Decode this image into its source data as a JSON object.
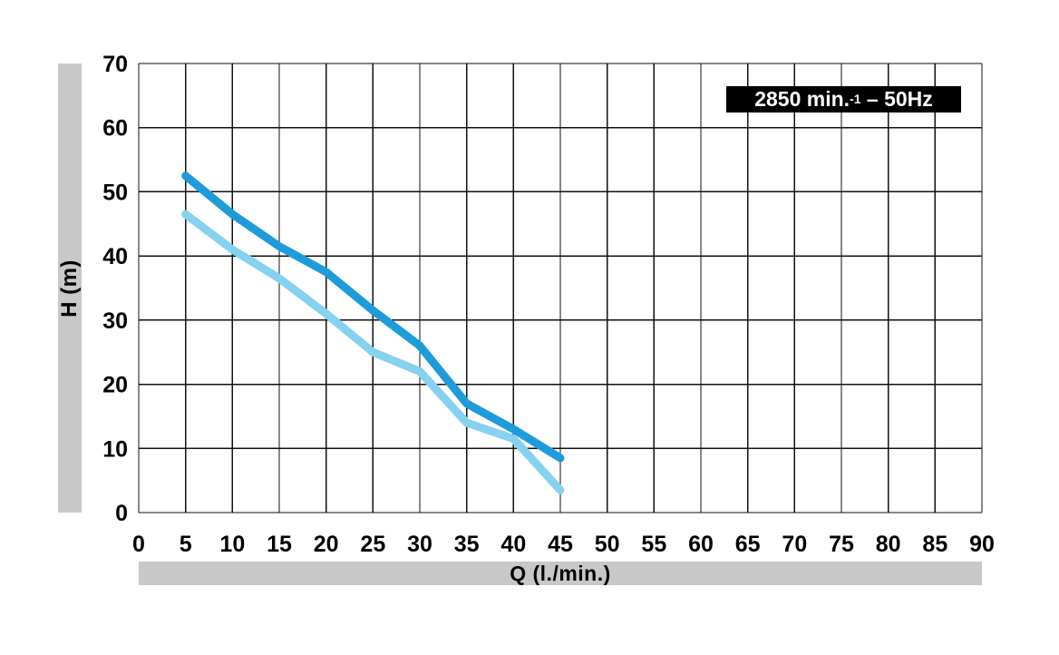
{
  "figure": {
    "badge": {
      "prefix": "2850 min.",
      "sup": "-1",
      "suffix": " – 50Hz"
    }
  },
  "colors": {
    "axis_bar_gray": "#c8c8c8",
    "grid_line": "#111111",
    "badge_background": "#000000",
    "badge_text": "#ffffff",
    "upper_curve_blue": "#1e9cd9",
    "lower_curve_blue": "#85d1f0"
  },
  "chart_data": {
    "type": "line",
    "title": "",
    "xlabel": "Q (l./min.)",
    "ylabel": "H (m)",
    "annotation": "2850 min.⁻¹ – 50Hz",
    "xlim": [
      0,
      90
    ],
    "ylim": [
      0,
      70
    ],
    "x_ticks": [
      0,
      5,
      10,
      15,
      20,
      25,
      30,
      35,
      40,
      45,
      50,
      55,
      60,
      65,
      70,
      75,
      80,
      85,
      90
    ],
    "y_ticks": [
      0,
      10,
      20,
      30,
      40,
      50,
      60,
      70
    ],
    "grid": true,
    "legend": "none",
    "series": [
      {
        "name": "lower-curve",
        "color": "#85d1f0",
        "x": [
          5,
          10,
          15,
          20,
          25,
          30,
          35,
          40,
          45
        ],
        "y": [
          46.5,
          41,
          36.5,
          31,
          25,
          22,
          14,
          11.5,
          3.5
        ]
      },
      {
        "name": "upper-curve",
        "color": "#1e9cd9",
        "x": [
          5,
          10,
          15,
          20,
          25,
          30,
          35,
          40,
          45
        ],
        "y": [
          52.5,
          46.5,
          41.5,
          37.5,
          31.5,
          26,
          17,
          13,
          8.5
        ]
      }
    ]
  }
}
